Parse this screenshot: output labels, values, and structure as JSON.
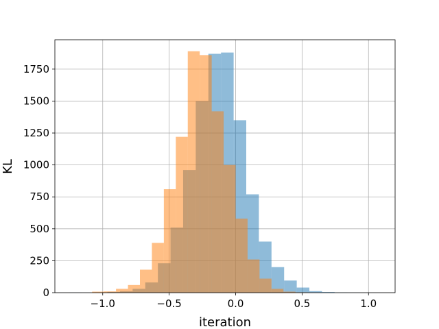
{
  "chart_data": {
    "type": "histogram",
    "title": "",
    "xlabel": "iteration",
    "ylabel": "KL",
    "xlim": [
      -1.36,
      1.2
    ],
    "ylim": [
      0,
      1980
    ],
    "grid": true,
    "legend": "none",
    "xticks": [
      -1.0,
      -0.5,
      0.0,
      0.5,
      1.0
    ],
    "xtick_labels": [
      "−1.0",
      "−0.5",
      "0.0",
      "0.5",
      "1.0"
    ],
    "yticks": [
      0,
      250,
      500,
      750,
      1000,
      1250,
      1500,
      1750
    ],
    "ytick_labels": [
      "0",
      "250",
      "500",
      "750",
      "1000",
      "1250",
      "1500",
      "1750"
    ],
    "series": [
      {
        "color": "#1f77b4",
        "alpha": 0.5,
        "bin_edges": [
          -1.25,
          -1.155,
          -1.06,
          -0.965,
          -0.87,
          -0.775,
          -0.68,
          -0.585,
          -0.49,
          -0.395,
          -0.3,
          -0.205,
          -0.11,
          -0.015,
          0.08,
          0.175,
          0.27,
          0.365,
          0.46,
          0.555,
          0.65,
          0.745,
          0.84,
          0.935
        ],
        "counts": [
          1,
          0,
          2,
          6,
          12,
          30,
          80,
          230,
          510,
          960,
          1500,
          1870,
          1880,
          1350,
          770,
          400,
          200,
          95,
          40,
          12,
          5,
          2,
          1
        ]
      },
      {
        "color": "#ff7f0e",
        "alpha": 0.5,
        "bin_edges": [
          -1.08,
          -0.99,
          -0.9,
          -0.81,
          -0.72,
          -0.63,
          -0.54,
          -0.45,
          -0.36,
          -0.27,
          -0.18,
          -0.09,
          0.0,
          0.09,
          0.18,
          0.27,
          0.36,
          0.45,
          0.54,
          0.63
        ],
        "counts": [
          8,
          10,
          30,
          60,
          180,
          390,
          810,
          1220,
          1890,
          1860,
          1420,
          1000,
          580,
          260,
          110,
          30,
          8,
          3,
          1
        ]
      }
    ]
  }
}
